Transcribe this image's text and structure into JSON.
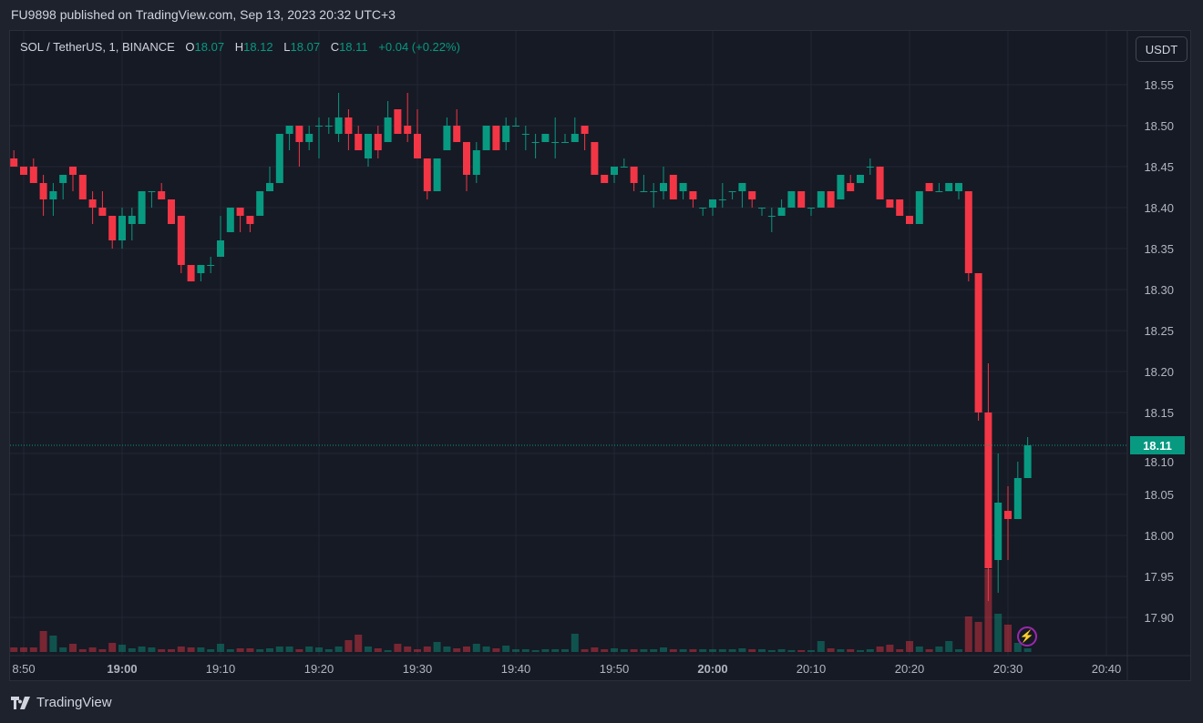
{
  "header": {
    "published": "FU9898 published on TradingView.com, Sep 13, 2023 20:32 UTC+3"
  },
  "legend": {
    "symbol": "SOL / TetherUS, 1, BINANCE",
    "o_label": "O",
    "o": "18.07",
    "h_label": "H",
    "h": "18.12",
    "l_label": "L",
    "l": "18.07",
    "c_label": "C",
    "c": "18.11",
    "change": "+0.04 (+0.22%)"
  },
  "currency_button": "USDT",
  "last_price": "18.11",
  "footer": {
    "brand": "TradingView"
  },
  "icons": {
    "alert": "lightning-icon",
    "logo": "tradingview-logo-icon"
  },
  "colors": {
    "up": "#089981",
    "down": "#f23645",
    "background": "#161a25",
    "grid": "#232733",
    "alert": "#9c27b0"
  },
  "chart_data": {
    "type": "candlestick",
    "title": "SOL / TetherUS, 1, BINANCE",
    "interval_minutes": 1,
    "first_candle_time": "18:49",
    "last_candle_time": "20:32",
    "ylabel": "USDT",
    "ylim": [
      17.86,
      18.58
    ],
    "grid": true,
    "y_ticks": [
      "18.55",
      "18.50",
      "18.45",
      "18.40",
      "18.35",
      "18.30",
      "18.25",
      "18.20",
      "18.15",
      "18.10",
      "18.05",
      "18.00",
      "17.95",
      "17.90"
    ],
    "x_ticks": [
      {
        "label": "8:50",
        "minute": -10,
        "bold": false
      },
      {
        "label": "19:00",
        "minute": 0,
        "bold": true
      },
      {
        "label": "19:10",
        "minute": 10,
        "bold": false
      },
      {
        "label": "19:20",
        "minute": 20,
        "bold": false
      },
      {
        "label": "19:30",
        "minute": 30,
        "bold": false
      },
      {
        "label": "19:40",
        "minute": 40,
        "bold": false
      },
      {
        "label": "19:50",
        "minute": 50,
        "bold": false
      },
      {
        "label": "20:00",
        "minute": 60,
        "bold": true
      },
      {
        "label": "20:10",
        "minute": 70,
        "bold": false
      },
      {
        "label": "20:20",
        "minute": 80,
        "bold": false
      },
      {
        "label": "20:30",
        "minute": 90,
        "bold": false
      },
      {
        "label": "20:40",
        "minute": 100,
        "bold": false
      }
    ],
    "ohlc_fields": [
      "open",
      "high",
      "low",
      "close"
    ],
    "ohlc": [
      [
        18.46,
        18.47,
        18.45,
        18.45
      ],
      [
        18.45,
        18.45,
        18.44,
        18.44
      ],
      [
        18.45,
        18.46,
        18.43,
        18.43
      ],
      [
        18.43,
        18.44,
        18.39,
        18.41
      ],
      [
        18.41,
        18.43,
        18.39,
        18.42
      ],
      [
        18.43,
        18.44,
        18.41,
        18.44
      ],
      [
        18.45,
        18.45,
        18.42,
        18.44
      ],
      [
        18.44,
        18.44,
        18.41,
        18.41
      ],
      [
        18.41,
        18.42,
        18.38,
        18.4
      ],
      [
        18.4,
        18.42,
        18.39,
        18.39
      ],
      [
        18.39,
        18.39,
        18.35,
        18.36
      ],
      [
        18.36,
        18.4,
        18.35,
        18.39
      ],
      [
        18.38,
        18.4,
        18.36,
        18.39
      ],
      [
        18.38,
        18.42,
        18.38,
        18.42
      ],
      [
        18.42,
        18.42,
        18.4,
        18.42
      ],
      [
        18.42,
        18.43,
        18.41,
        18.41
      ],
      [
        18.41,
        18.41,
        18.38,
        18.38
      ],
      [
        18.39,
        18.39,
        18.32,
        18.33
      ],
      [
        18.33,
        18.33,
        18.31,
        18.31
      ],
      [
        18.32,
        18.33,
        18.31,
        18.33
      ],
      [
        18.33,
        18.34,
        18.32,
        18.33
      ],
      [
        18.34,
        18.39,
        18.34,
        18.36
      ],
      [
        18.37,
        18.4,
        18.37,
        18.4
      ],
      [
        18.4,
        18.4,
        18.37,
        18.39
      ],
      [
        18.39,
        18.39,
        18.37,
        18.38
      ],
      [
        18.39,
        18.42,
        18.39,
        18.42
      ],
      [
        18.42,
        18.45,
        18.42,
        18.43
      ],
      [
        18.43,
        18.49,
        18.43,
        18.49
      ],
      [
        18.49,
        18.5,
        18.47,
        18.5
      ],
      [
        18.5,
        18.5,
        18.45,
        18.48
      ],
      [
        18.48,
        18.5,
        18.47,
        18.49
      ],
      [
        18.5,
        18.51,
        18.46,
        18.5
      ],
      [
        18.5,
        18.51,
        18.49,
        18.5
      ],
      [
        18.49,
        18.54,
        18.48,
        18.51
      ],
      [
        18.51,
        18.52,
        18.47,
        18.49
      ],
      [
        18.49,
        18.5,
        18.47,
        18.47
      ],
      [
        18.46,
        18.49,
        18.45,
        18.49
      ],
      [
        18.49,
        18.5,
        18.46,
        18.47
      ],
      [
        18.48,
        18.53,
        18.48,
        18.51
      ],
      [
        18.52,
        18.52,
        18.49,
        18.49
      ],
      [
        18.5,
        18.54,
        18.48,
        18.49
      ],
      [
        18.49,
        18.52,
        18.46,
        18.46
      ],
      [
        18.46,
        18.46,
        18.41,
        18.42
      ],
      [
        18.42,
        18.46,
        18.42,
        18.46
      ],
      [
        18.47,
        18.51,
        18.47,
        18.5
      ],
      [
        18.5,
        18.52,
        18.48,
        18.48
      ],
      [
        18.48,
        18.48,
        18.42,
        18.44
      ],
      [
        18.44,
        18.48,
        18.43,
        18.47
      ],
      [
        18.47,
        18.5,
        18.47,
        18.5
      ],
      [
        18.5,
        18.5,
        18.47,
        18.47
      ],
      [
        18.48,
        18.51,
        18.47,
        18.5
      ],
      [
        18.5,
        18.51,
        18.5,
        18.5
      ],
      [
        18.49,
        18.5,
        18.47,
        18.49
      ],
      [
        18.48,
        18.49,
        18.46,
        18.48
      ],
      [
        18.48,
        18.49,
        18.48,
        18.49
      ],
      [
        18.48,
        18.51,
        18.46,
        18.48
      ],
      [
        18.48,
        18.49,
        18.48,
        18.48
      ],
      [
        18.48,
        18.51,
        18.48,
        18.49
      ],
      [
        18.5,
        18.5,
        18.47,
        18.49
      ],
      [
        18.48,
        18.48,
        18.44,
        18.44
      ],
      [
        18.44,
        18.44,
        18.43,
        18.43
      ],
      [
        18.44,
        18.45,
        18.43,
        18.45
      ],
      [
        18.45,
        18.46,
        18.45,
        18.45
      ],
      [
        18.45,
        18.45,
        18.42,
        18.43
      ],
      [
        18.42,
        18.44,
        18.42,
        18.42
      ],
      [
        18.42,
        18.43,
        18.4,
        18.42
      ],
      [
        18.42,
        18.45,
        18.41,
        18.43
      ],
      [
        18.44,
        18.44,
        18.41,
        18.41
      ],
      [
        18.42,
        18.43,
        18.41,
        18.43
      ],
      [
        18.42,
        18.42,
        18.4,
        18.41
      ],
      [
        18.4,
        18.4,
        18.39,
        18.4
      ],
      [
        18.4,
        18.41,
        18.39,
        18.41
      ],
      [
        18.41,
        18.43,
        18.4,
        18.41
      ],
      [
        18.42,
        18.42,
        18.41,
        18.42
      ],
      [
        18.42,
        18.43,
        18.4,
        18.43
      ],
      [
        18.42,
        18.42,
        18.4,
        18.41
      ],
      [
        18.4,
        18.4,
        18.39,
        18.4
      ],
      [
        18.39,
        18.4,
        18.37,
        18.39
      ],
      [
        18.39,
        18.41,
        18.39,
        18.4
      ],
      [
        18.4,
        18.42,
        18.4,
        18.42
      ],
      [
        18.42,
        18.42,
        18.4,
        18.4
      ],
      [
        18.4,
        18.4,
        18.39,
        18.4
      ],
      [
        18.4,
        18.42,
        18.4,
        18.42
      ],
      [
        18.42,
        18.42,
        18.4,
        18.4
      ],
      [
        18.41,
        18.44,
        18.41,
        18.44
      ],
      [
        18.43,
        18.44,
        18.42,
        18.42
      ],
      [
        18.43,
        18.44,
        18.43,
        18.44
      ],
      [
        18.45,
        18.46,
        18.44,
        18.45
      ],
      [
        18.45,
        18.45,
        18.41,
        18.41
      ],
      [
        18.41,
        18.41,
        18.4,
        18.4
      ],
      [
        18.41,
        18.41,
        18.39,
        18.39
      ],
      [
        18.39,
        18.39,
        18.38,
        18.38
      ],
      [
        18.38,
        18.42,
        18.38,
        18.42
      ],
      [
        18.43,
        18.43,
        18.42,
        18.42
      ],
      [
        18.42,
        18.43,
        18.42,
        18.42
      ],
      [
        18.42,
        18.43,
        18.42,
        18.43
      ],
      [
        18.42,
        18.43,
        18.41,
        18.43
      ],
      [
        18.42,
        18.42,
        18.31,
        18.32
      ],
      [
        18.32,
        18.32,
        18.14,
        18.15
      ],
      [
        18.15,
        18.21,
        17.92,
        17.96
      ],
      [
        17.97,
        18.1,
        17.93,
        18.04
      ],
      [
        18.03,
        18.06,
        17.97,
        18.02
      ],
      [
        18.02,
        18.09,
        18.02,
        18.07
      ],
      [
        18.07,
        18.12,
        18.07,
        18.11
      ]
    ],
    "volume_relative": [
      5,
      5,
      5,
      23,
      18,
      5,
      9,
      3,
      5,
      3,
      10,
      8,
      4,
      6,
      5,
      3,
      3,
      6,
      5,
      5,
      3,
      9,
      3,
      4,
      4,
      3,
      4,
      6,
      6,
      3,
      6,
      5,
      3,
      6,
      13,
      19,
      6,
      4,
      2,
      9,
      6,
      3,
      6,
      11,
      6,
      4,
      6,
      9,
      6,
      4,
      7,
      3,
      3,
      2,
      3,
      3,
      3,
      20,
      3,
      5,
      3,
      4,
      3,
      3,
      3,
      3,
      5,
      3,
      3,
      3,
      3,
      3,
      3,
      3,
      4,
      3,
      3,
      2,
      3,
      2,
      2,
      2,
      12,
      4,
      3,
      3,
      2,
      3,
      6,
      8,
      3,
      12,
      6,
      3,
      6,
      12,
      3,
      39,
      33,
      91,
      42,
      30,
      10,
      4
    ],
    "last_price": 18.11
  }
}
